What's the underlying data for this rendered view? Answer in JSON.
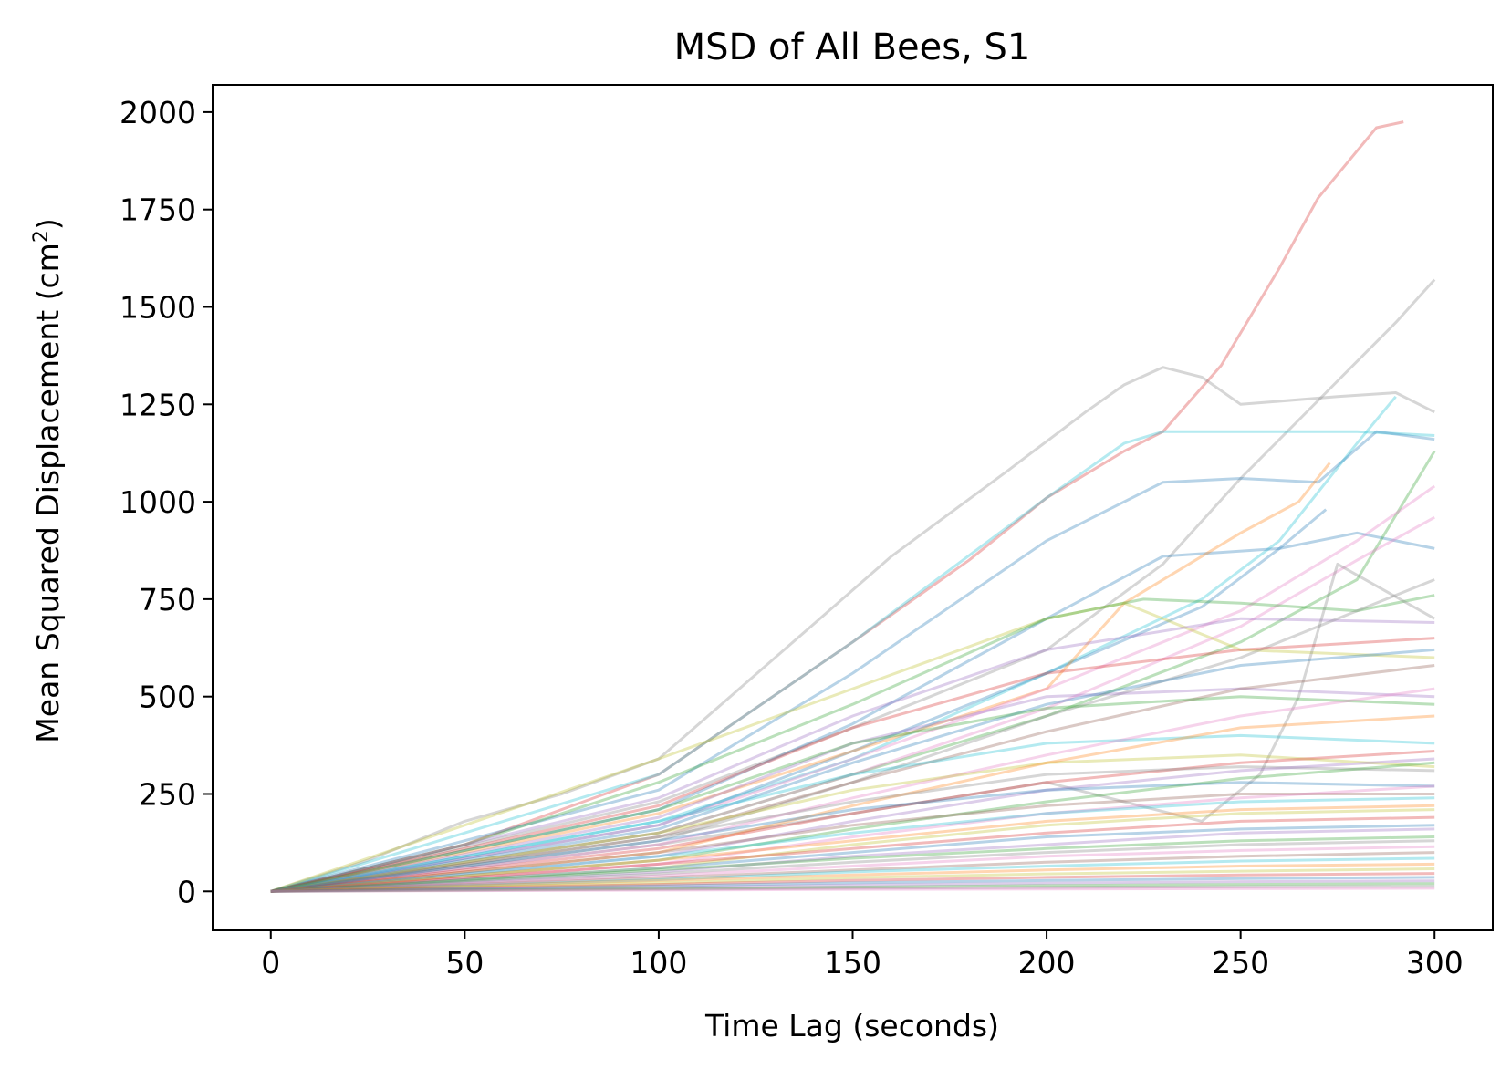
{
  "chart_data": {
    "type": "line",
    "title": "MSD of All Bees, S1",
    "xlabel": "Time Lag (seconds)",
    "ylabel": {
      "main": "Mean Squared Displacement (cm",
      "sup": "2",
      "close": ")"
    },
    "xlim": [
      -15,
      315
    ],
    "ylim": [
      -100,
      2070
    ],
    "xticks": [
      0,
      50,
      100,
      150,
      200,
      250,
      300
    ],
    "yticks": [
      0,
      250,
      500,
      750,
      1000,
      1250,
      1500,
      1750,
      2000
    ],
    "grid": false,
    "legend": "none",
    "colors": [
      "#1f77b4",
      "#ff7f0e",
      "#2ca02c",
      "#d62728",
      "#9467bd",
      "#8c564b",
      "#e377c2",
      "#7f7f7f",
      "#bcbd22",
      "#17becf"
    ],
    "series": [
      {
        "color": "#d62728",
        "x": [
          0,
          50,
          100,
          150,
          180,
          200,
          220,
          230,
          245,
          260,
          270,
          280,
          285,
          292
        ],
        "y": [
          0,
          120,
          300,
          640,
          850,
          1010,
          1130,
          1180,
          1350,
          1600,
          1780,
          1900,
          1960,
          1975
        ]
      },
      {
        "color": "#7f7f7f",
        "x": [
          0,
          25,
          50,
          75,
          100,
          130,
          160,
          190,
          210,
          220,
          230,
          240,
          250,
          275,
          290,
          300
        ],
        "y": [
          0,
          80,
          180,
          250,
          340,
          600,
          860,
          1080,
          1230,
          1300,
          1345,
          1320,
          1250,
          1270,
          1280,
          1230
        ]
      },
      {
        "color": "#7f7f7f",
        "x": [
          0,
          100,
          150,
          200,
          230,
          250,
          270,
          290,
          300
        ],
        "y": [
          0,
          230,
          420,
          620,
          840,
          1060,
          1260,
          1460,
          1570
        ]
      },
      {
        "color": "#17becf",
        "x": [
          0,
          100,
          150,
          200,
          220,
          230,
          260,
          280,
          300
        ],
        "y": [
          0,
          300,
          640,
          1010,
          1150,
          1180,
          1180,
          1180,
          1170
        ]
      },
      {
        "color": "#17becf",
        "x": [
          0,
          100,
          150,
          200,
          240,
          260,
          280,
          290
        ],
        "y": [
          0,
          180,
          340,
          560,
          750,
          900,
          1150,
          1270
        ]
      },
      {
        "color": "#1f77b4",
        "x": [
          0,
          100,
          150,
          200,
          230,
          250,
          270,
          285,
          300
        ],
        "y": [
          0,
          260,
          560,
          900,
          1050,
          1060,
          1050,
          1180,
          1160
        ]
      },
      {
        "color": "#1f77b4",
        "x": [
          0,
          100,
          150,
          200,
          230,
          260,
          280,
          300
        ],
        "y": [
          0,
          210,
          430,
          700,
          860,
          880,
          920,
          880
        ]
      },
      {
        "color": "#1f77b4",
        "x": [
          0,
          100,
          150,
          200,
          240,
          260,
          272
        ],
        "y": [
          0,
          170,
          360,
          560,
          730,
          880,
          980
        ]
      },
      {
        "color": "#ff7f0e",
        "x": [
          0,
          100,
          150,
          200,
          220,
          250,
          265,
          273
        ],
        "y": [
          0,
          200,
          360,
          520,
          740,
          920,
          1000,
          1100
        ]
      },
      {
        "color": "#2ca02c",
        "x": [
          0,
          100,
          150,
          200,
          250,
          280,
          300
        ],
        "y": [
          0,
          150,
          300,
          450,
          640,
          800,
          1130
        ]
      },
      {
        "color": "#e377c2",
        "x": [
          0,
          100,
          150,
          200,
          250,
          280,
          300
        ],
        "y": [
          0,
          170,
          340,
          520,
          720,
          900,
          1040
        ]
      },
      {
        "color": "#e377c2",
        "x": [
          0,
          100,
          150,
          200,
          250,
          280,
          300
        ],
        "y": [
          0,
          150,
          300,
          470,
          680,
          850,
          960
        ]
      },
      {
        "color": "#bcbd22",
        "x": [
          0,
          50,
          100,
          150,
          200,
          220,
          250,
          300
        ],
        "y": [
          0,
          170,
          340,
          520,
          700,
          740,
          620,
          600
        ]
      },
      {
        "color": "#2ca02c",
        "x": [
          0,
          50,
          100,
          150,
          200,
          225,
          250,
          280,
          300
        ],
        "y": [
          0,
          120,
          280,
          480,
          700,
          750,
          740,
          720,
          760
        ]
      },
      {
        "color": "#9467bd",
        "x": [
          0,
          100,
          150,
          200,
          250,
          300
        ],
        "y": [
          0,
          240,
          450,
          620,
          700,
          690
        ]
      },
      {
        "color": "#7f7f7f",
        "x": [
          0,
          100,
          150,
          200,
          250,
          300
        ],
        "y": [
          0,
          130,
          280,
          450,
          600,
          800
        ]
      },
      {
        "color": "#7f7f7f",
        "x": [
          0,
          100,
          200,
          240,
          255,
          265,
          275,
          300
        ],
        "y": [
          0,
          120,
          280,
          180,
          300,
          500,
          840,
          700
        ]
      },
      {
        "color": "#d62728",
        "x": [
          0,
          100,
          150,
          200,
          250,
          300
        ],
        "y": [
          0,
          220,
          420,
          560,
          620,
          650
        ]
      },
      {
        "color": "#9467bd",
        "x": [
          0,
          100,
          150,
          200,
          250,
          300
        ],
        "y": [
          0,
          190,
          380,
          500,
          520,
          500
        ]
      },
      {
        "color": "#1f77b4",
        "x": [
          0,
          100,
          150,
          200,
          250,
          300
        ],
        "y": [
          0,
          160,
          330,
          480,
          580,
          620
        ]
      },
      {
        "color": "#8c564b",
        "x": [
          0,
          100,
          150,
          200,
          250,
          300
        ],
        "y": [
          0,
          140,
          280,
          410,
          520,
          580
        ]
      },
      {
        "color": "#17becf",
        "x": [
          0,
          100,
          150,
          200,
          250,
          300
        ],
        "y": [
          0,
          180,
          300,
          380,
          400,
          380
        ]
      },
      {
        "color": "#2ca02c",
        "x": [
          0,
          100,
          150,
          200,
          250,
          300
        ],
        "y": [
          0,
          210,
          380,
          470,
          500,
          480
        ]
      },
      {
        "color": "#e377c2",
        "x": [
          0,
          100,
          150,
          200,
          250,
          300
        ],
        "y": [
          0,
          120,
          240,
          350,
          450,
          520
        ]
      },
      {
        "color": "#bcbd22",
        "x": [
          0,
          100,
          150,
          200,
          250,
          300
        ],
        "y": [
          0,
          150,
          260,
          330,
          350,
          320
        ]
      },
      {
        "color": "#ff7f0e",
        "x": [
          0,
          100,
          150,
          200,
          250,
          300
        ],
        "y": [
          0,
          100,
          220,
          330,
          420,
          450
        ]
      },
      {
        "color": "#d62728",
        "x": [
          0,
          100,
          150,
          200,
          250,
          300
        ],
        "y": [
          0,
          110,
          200,
          280,
          330,
          360
        ]
      },
      {
        "color": "#7f7f7f",
        "x": [
          0,
          100,
          150,
          200,
          250,
          300
        ],
        "y": [
          0,
          140,
          230,
          300,
          320,
          310
        ]
      },
      {
        "color": "#9467bd",
        "x": [
          0,
          100,
          150,
          200,
          250,
          300
        ],
        "y": [
          0,
          90,
          180,
          260,
          310,
          340
        ]
      },
      {
        "color": "#1f77b4",
        "x": [
          0,
          100,
          150,
          200,
          250,
          300
        ],
        "y": [
          0,
          130,
          210,
          260,
          280,
          270
        ]
      },
      {
        "color": "#2ca02c",
        "x": [
          0,
          100,
          150,
          200,
          250,
          300
        ],
        "y": [
          0,
          80,
          160,
          230,
          290,
          330
        ]
      },
      {
        "color": "#8c564b",
        "x": [
          0,
          100,
          150,
          200,
          250,
          300
        ],
        "y": [
          0,
          100,
          170,
          220,
          250,
          250
        ]
      },
      {
        "color": "#e377c2",
        "x": [
          0,
          100,
          150,
          200,
          250,
          300
        ],
        "y": [
          0,
          70,
          140,
          200,
          240,
          270
        ]
      },
      {
        "color": "#17becf",
        "x": [
          0,
          100,
          150,
          200,
          250,
          300
        ],
        "y": [
          0,
          90,
          150,
          200,
          230,
          240
        ]
      },
      {
        "color": "#ff7f0e",
        "x": [
          0,
          100,
          150,
          200,
          250,
          300
        ],
        "y": [
          0,
          80,
          130,
          180,
          210,
          220
        ]
      },
      {
        "color": "#bcbd22",
        "x": [
          0,
          100,
          150,
          200,
          250,
          300
        ],
        "y": [
          0,
          60,
          120,
          170,
          200,
          210
        ]
      },
      {
        "color": "#d62728",
        "x": [
          0,
          100,
          150,
          200,
          250,
          300
        ],
        "y": [
          0,
          70,
          110,
          150,
          180,
          190
        ]
      },
      {
        "color": "#1f77b4",
        "x": [
          0,
          100,
          150,
          200,
          250,
          300
        ],
        "y": [
          0,
          60,
          100,
          140,
          160,
          170
        ]
      },
      {
        "color": "#9467bd",
        "x": [
          0,
          100,
          150,
          200,
          250,
          300
        ],
        "y": [
          0,
          50,
          90,
          120,
          150,
          160
        ]
      },
      {
        "color": "#2ca02c",
        "x": [
          0,
          100,
          150,
          200,
          250,
          300
        ],
        "y": [
          0,
          55,
          85,
          110,
          130,
          140
        ]
      },
      {
        "color": "#7f7f7f",
        "x": [
          0,
          100,
          150,
          200,
          250,
          300
        ],
        "y": [
          0,
          45,
          75,
          100,
          120,
          130
        ]
      },
      {
        "color": "#e377c2",
        "x": [
          0,
          100,
          150,
          200,
          250,
          300
        ],
        "y": [
          0,
          40,
          65,
          90,
          105,
          115
        ]
      },
      {
        "color": "#8c564b",
        "x": [
          0,
          100,
          150,
          200,
          250,
          300
        ],
        "y": [
          0,
          35,
          55,
          75,
          90,
          100
        ]
      },
      {
        "color": "#17becf",
        "x": [
          0,
          100,
          150,
          200,
          250,
          300
        ],
        "y": [
          0,
          30,
          50,
          65,
          78,
          85
        ]
      },
      {
        "color": "#ff7f0e",
        "x": [
          0,
          100,
          150,
          200,
          250,
          300
        ],
        "y": [
          0,
          28,
          42,
          55,
          65,
          70
        ]
      },
      {
        "color": "#bcbd22",
        "x": [
          0,
          100,
          150,
          200,
          250,
          300
        ],
        "y": [
          0,
          22,
          35,
          45,
          52,
          58
        ]
      },
      {
        "color": "#d62728",
        "x": [
          0,
          100,
          150,
          200,
          250,
          300
        ],
        "y": [
          0,
          18,
          28,
          36,
          42,
          46
        ]
      },
      {
        "color": "#1f77b4",
        "x": [
          0,
          100,
          150,
          200,
          250,
          300
        ],
        "y": [
          0,
          14,
          22,
          28,
          33,
          36
        ]
      },
      {
        "color": "#9467bd",
        "x": [
          0,
          100,
          150,
          200,
          250,
          300
        ],
        "y": [
          0,
          10,
          16,
          21,
          25,
          27
        ]
      },
      {
        "color": "#2ca02c",
        "x": [
          0,
          100,
          150,
          200,
          250,
          300
        ],
        "y": [
          0,
          7,
          11,
          15,
          18,
          20
        ]
      },
      {
        "color": "#7f7f7f",
        "x": [
          0,
          100,
          150,
          200,
          250,
          300
        ],
        "y": [
          0,
          5,
          8,
          10,
          12,
          13
        ]
      },
      {
        "color": "#e377c2",
        "x": [
          0,
          100,
          150,
          200,
          250,
          300
        ],
        "y": [
          0,
          3,
          5,
          6,
          7,
          8
        ]
      }
    ]
  }
}
